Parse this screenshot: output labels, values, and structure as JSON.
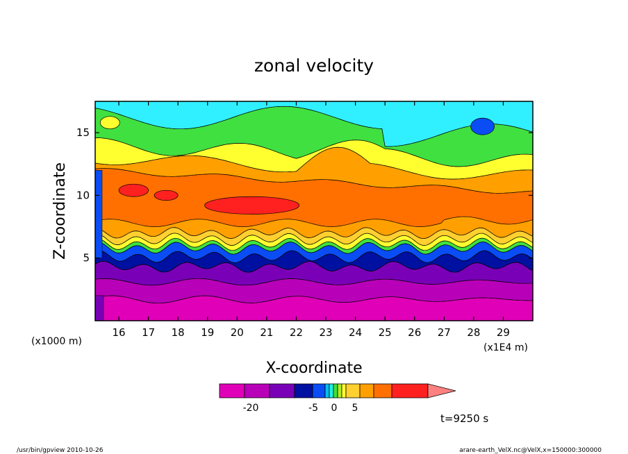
{
  "chart_data": {
    "type": "heatmap",
    "title": "zonal velocity",
    "xlabel": "X-coordinate",
    "ylabel": "Z-coordinate",
    "x_unit": "(x1E4 m)",
    "y_unit": "(x1000 m)",
    "xlim": [
      15.2,
      30.0
    ],
    "ylim": [
      0.0,
      17.5
    ],
    "x_ticks": [
      "16",
      "17",
      "18",
      "19",
      "20",
      "21",
      "22",
      "23",
      "24",
      "25",
      "26",
      "27",
      "28",
      "29"
    ],
    "y_ticks": [
      "5",
      "10",
      "15"
    ],
    "colorbar": {
      "labels": [
        "-20",
        "-5",
        "0",
        "5"
      ],
      "levels": [
        -25,
        -20,
        -15,
        -10,
        -5,
        -3,
        -2,
        -1,
        0,
        1,
        2,
        5,
        8,
        15,
        20
      ],
      "colors": [
        "#e000b8",
        "#b800b8",
        "#7a00b8",
        "#0010a0",
        "#0a4df5",
        "#00c0f0",
        "#20f0e0",
        "#40e040",
        "#b0ee20",
        "#ffff30",
        "#ffd030",
        "#ffa000",
        "#ff7000",
        "#ff2020",
        "#ff8080"
      ]
    },
    "colors": {
      "magenta": "#e000b8",
      "purple1": "#b800b8",
      "purple2": "#7a00b8",
      "navy": "#0010a0",
      "blue": "#0a4df5",
      "cyan": "#30f0ff",
      "green": "#40e040",
      "yellow": "#ffff30",
      "gold": "#ffd030",
      "orange1": "#ffa000",
      "orange2": "#ff7000",
      "red": "#ff2020"
    },
    "time_label": "t=9250 s"
  },
  "footer": {
    "left": "/usr/bin/gpview   2010-10-26",
    "right": "arare-earth_VelX.nc@VelX,x=150000:300000"
  }
}
